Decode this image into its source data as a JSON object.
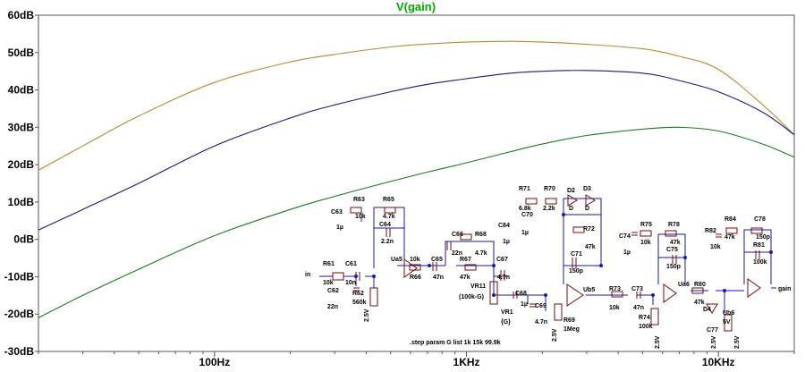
{
  "window": {
    "background": "#ffffff"
  },
  "chart_data": {
    "type": "line",
    "title": "V(gain)",
    "title_color": "#00aa00",
    "xlabel": "",
    "ylabel": "",
    "x_scale": "log",
    "xlim": [
      20,
      20000
    ],
    "ylim": [
      -30,
      60
    ],
    "grid": false,
    "x_ticks": [
      {
        "value": 100,
        "label": "100Hz"
      },
      {
        "value": 1000,
        "label": "1KHz"
      },
      {
        "value": 10000,
        "label": "10KHz"
      }
    ],
    "y_ticks": [
      {
        "value": 60,
        "label": "60dB"
      },
      {
        "value": 50,
        "label": "50dB"
      },
      {
        "value": 40,
        "label": "40dB"
      },
      {
        "value": 30,
        "label": "30dB"
      },
      {
        "value": 20,
        "label": "20dB"
      },
      {
        "value": 10,
        "label": "10dB"
      },
      {
        "value": 0,
        "label": "0dB"
      },
      {
        "value": -10,
        "label": "-10dB"
      },
      {
        "value": -20,
        "label": "-20dB"
      },
      {
        "value": -30,
        "label": "-30dB"
      }
    ],
    "series": [
      {
        "color": "#b88a2e",
        "points": [
          [
            20,
            18.5
          ],
          [
            30,
            25
          ],
          [
            50,
            33
          ],
          [
            100,
            42
          ],
          [
            200,
            47.5
          ],
          [
            300,
            49.5
          ],
          [
            500,
            51.5
          ],
          [
            700,
            52.3
          ],
          [
            1000,
            52.8
          ],
          [
            1500,
            53
          ],
          [
            2000,
            52.8
          ],
          [
            3000,
            52.2
          ],
          [
            5000,
            51
          ],
          [
            7000,
            49
          ],
          [
            10000,
            45.5
          ],
          [
            15000,
            36
          ],
          [
            20000,
            28
          ]
        ]
      },
      {
        "color": "#1a1a80",
        "points": [
          [
            20,
            2.5
          ],
          [
            30,
            8
          ],
          [
            50,
            15
          ],
          [
            100,
            25
          ],
          [
            200,
            32.5
          ],
          [
            300,
            36
          ],
          [
            500,
            39.5
          ],
          [
            700,
            41.5
          ],
          [
            1000,
            43
          ],
          [
            1500,
            44.5
          ],
          [
            2000,
            45
          ],
          [
            3000,
            45.2
          ],
          [
            5000,
            44.5
          ],
          [
            7000,
            42.5
          ],
          [
            10000,
            39.5
          ],
          [
            15000,
            34
          ],
          [
            20000,
            28
          ]
        ]
      },
      {
        "color": "#1e7a1e",
        "points": [
          [
            20,
            -21
          ],
          [
            30,
            -15
          ],
          [
            50,
            -8
          ],
          [
            100,
            1
          ],
          [
            200,
            8
          ],
          [
            300,
            11.5
          ],
          [
            500,
            15.5
          ],
          [
            700,
            18
          ],
          [
            1000,
            20.5
          ],
          [
            1500,
            23.5
          ],
          [
            2000,
            25.5
          ],
          [
            3000,
            27.8
          ],
          [
            5000,
            29.5
          ],
          [
            7000,
            30
          ],
          [
            10000,
            29
          ],
          [
            15000,
            25.5
          ],
          [
            20000,
            22
          ]
        ]
      }
    ]
  },
  "schematic": {
    "step_param": ".step param G list 1k 15k 99.9k",
    "nets": [
      "in",
      "gain"
    ],
    "components": [
      {
        "ref": "R61",
        "value": "10k"
      },
      {
        "ref": "C61",
        "value": "10n"
      },
      {
        "ref": "C62",
        "value": "22n"
      },
      {
        "ref": "R62",
        "value": "560k"
      },
      {
        "ref": "C63",
        "value": "1µ"
      },
      {
        "ref": "R63",
        "value": "10k"
      },
      {
        "ref": "R65",
        "value": "4.7k"
      },
      {
        "ref": "C64",
        "value": "2.2n"
      },
      {
        "ref": "Ua5",
        "value": "5V"
      },
      {
        "ref": "R66",
        "value": "10k"
      },
      {
        "ref": "C65",
        "value": "47n"
      },
      {
        "ref": "C66",
        "value": "22n"
      },
      {
        "ref": "R68",
        "value": "4.7k"
      },
      {
        "ref": "R67",
        "value": "47k"
      },
      {
        "ref": "VR11",
        "value": "(100k-G)"
      },
      {
        "ref": "VR1",
        "value": "{G}"
      },
      {
        "ref": "C67",
        "value": "4.7n"
      },
      {
        "ref": "C68",
        "value": "1µ"
      },
      {
        "ref": "C69",
        "value": "4.7n"
      },
      {
        "ref": "R69",
        "value": "1Meg"
      },
      {
        "ref": "C84",
        "value": "1µ"
      },
      {
        "ref": "C70",
        "value": "1µ"
      },
      {
        "ref": "R71",
        "value": "6.8k"
      },
      {
        "ref": "R70",
        "value": "2.2k"
      },
      {
        "ref": "D2",
        "value": "D"
      },
      {
        "ref": "D3",
        "value": "D"
      },
      {
        "ref": "R72",
        "value": "47k"
      },
      {
        "ref": "C71",
        "value": "150p"
      },
      {
        "ref": "Ub5",
        "value": "5V"
      },
      {
        "ref": "R73",
        "value": "10k"
      },
      {
        "ref": "C73",
        "value": "47n"
      },
      {
        "ref": "C74",
        "value": "1µ"
      },
      {
        "ref": "R75",
        "value": "10k"
      },
      {
        "ref": "R78",
        "value": "47k"
      },
      {
        "ref": "C75",
        "value": "150p"
      },
      {
        "ref": "Ua6",
        "value": "5V"
      },
      {
        "ref": "R74",
        "value": "100k"
      },
      {
        "ref": "R80",
        "value": "47k"
      },
      {
        "ref": "D4",
        "value": "D"
      },
      {
        "ref": "D5",
        "value": "D"
      },
      {
        "ref": "C77",
        "value": "1µ"
      },
      {
        "ref": "R82",
        "value": "10k"
      },
      {
        "ref": "R84",
        "value": "47k"
      },
      {
        "ref": "C78",
        "value": "150p"
      },
      {
        "ref": "R81",
        "value": "100k"
      },
      {
        "ref": "Ub6",
        "value": "5V"
      }
    ],
    "bias_label": "2.5V"
  }
}
